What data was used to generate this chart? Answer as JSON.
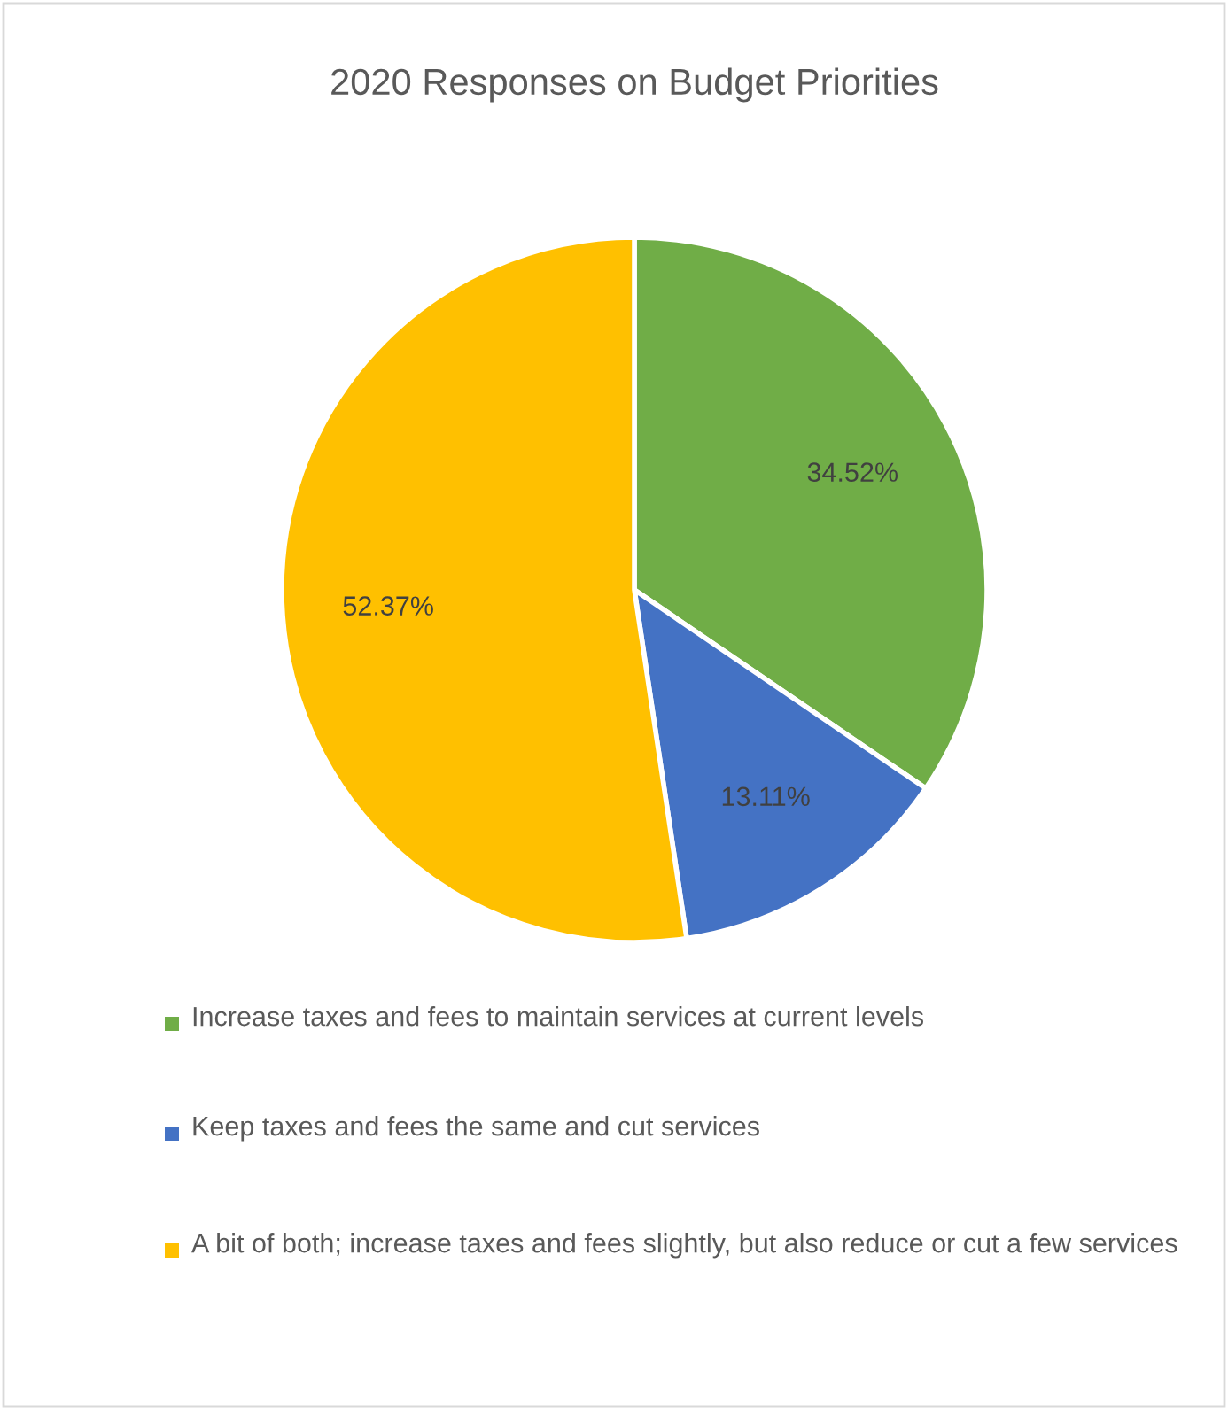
{
  "chart_data": {
    "type": "pie",
    "title": "2020 Responses on Budget Priorities",
    "categories": [
      "Increase taxes and fees to maintain services at current levels",
      "Keep taxes and fees the same and cut services",
      "A bit of both; increase taxes and fees slightly, but also reduce or cut a few services"
    ],
    "values": [
      34.52,
      13.11,
      52.37
    ],
    "colors": [
      "#70ad47",
      "#4472c4",
      "#ffc000"
    ],
    "value_labels": [
      "34.52%",
      "13.11%",
      "52.37%"
    ],
    "legend": "bottom"
  }
}
